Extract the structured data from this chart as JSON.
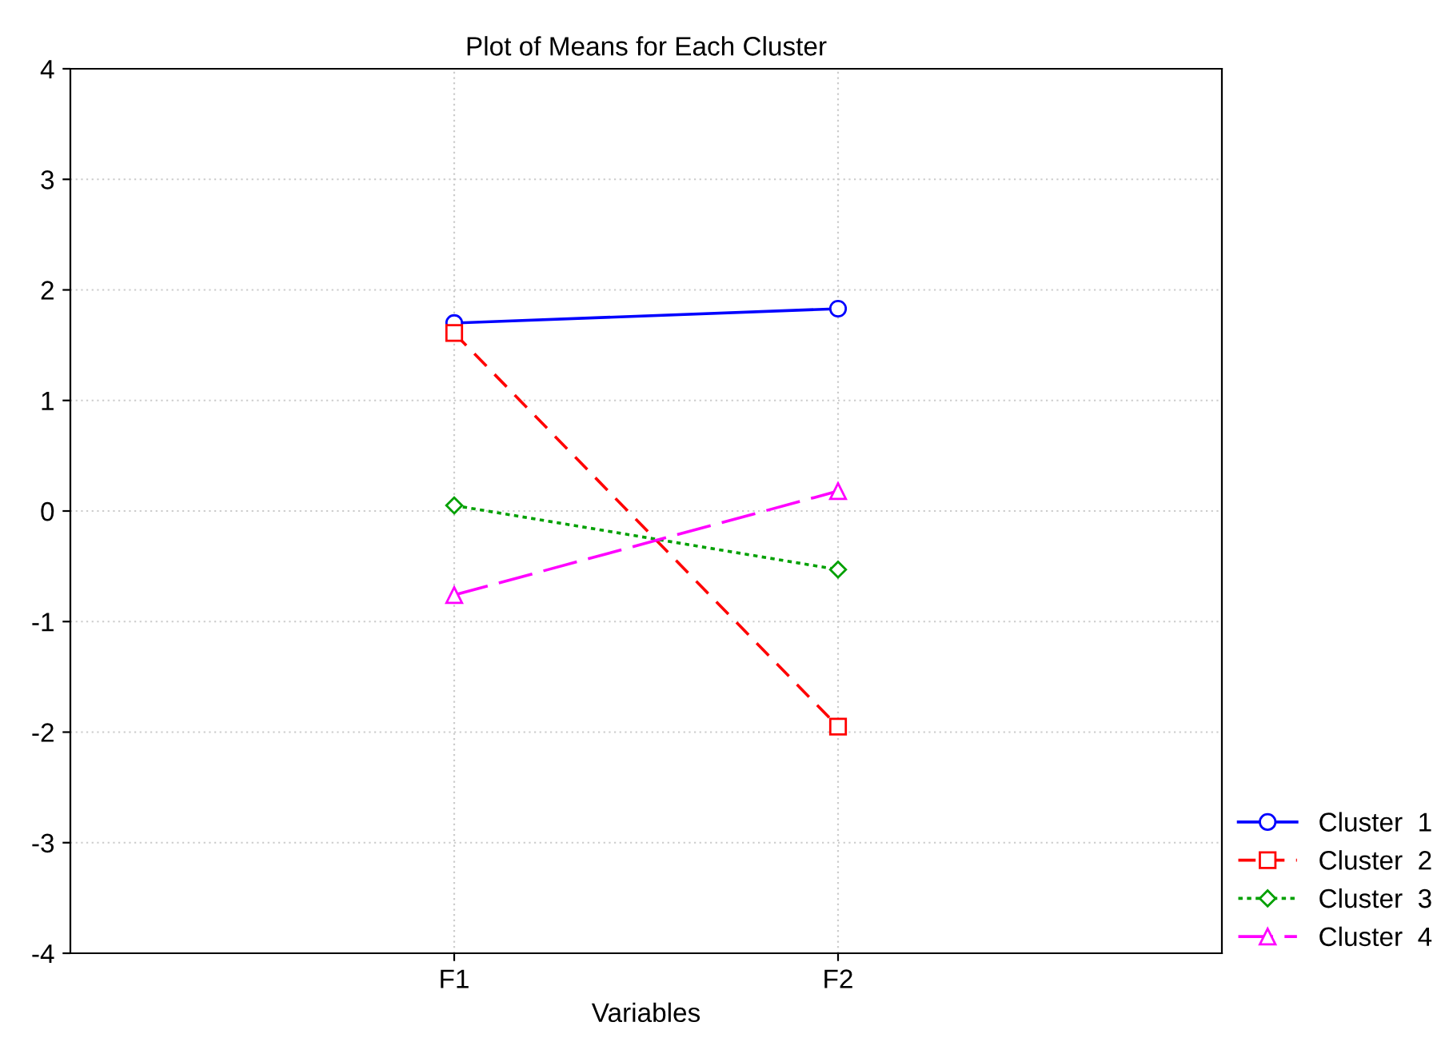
{
  "chart_data": {
    "type": "line",
    "title": "Plot of Means for Each Cluster",
    "xlabel": "Variables",
    "categories": [
      "F1",
      "F2"
    ],
    "ylim": [
      -4,
      4
    ],
    "yticks": [
      -4,
      -3,
      -2,
      -1,
      0,
      1,
      2,
      3,
      4
    ],
    "grid": true,
    "legend": "bottom right",
    "series": [
      {
        "name": "Cluster  1",
        "color": "#0000ff",
        "values": [
          1.7,
          1.83
        ],
        "marker": "circle",
        "line_style": "solid"
      },
      {
        "name": "Cluster  2",
        "color": "#ff0000",
        "values": [
          1.61,
          -1.95
        ],
        "marker": "square",
        "line_style": "dashed"
      },
      {
        "name": "Cluster  3",
        "color": "#00a000",
        "values": [
          0.05,
          -0.53
        ],
        "marker": "diamond",
        "line_style": "dotted"
      },
      {
        "name": "Cluster  4",
        "color": "#ff00ff",
        "values": [
          -0.76,
          0.18
        ],
        "marker": "triangle",
        "line_style": "dashed"
      }
    ]
  }
}
